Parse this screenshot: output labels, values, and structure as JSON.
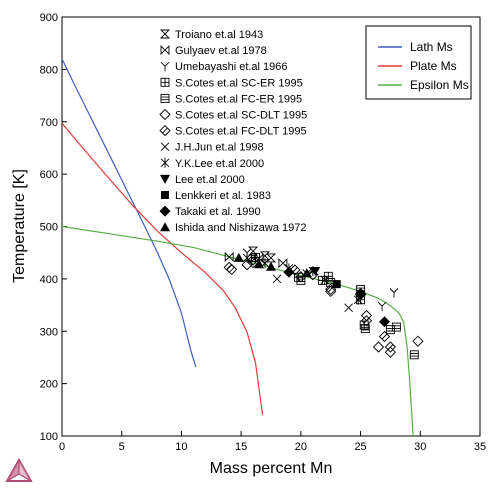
{
  "chart_data": {
    "type": "line",
    "xlabel": "Mass percent Mn",
    "ylabel": "Temperature [K]",
    "xlim": [
      0,
      35
    ],
    "ylim": [
      100,
      900
    ],
    "xticks": [
      0,
      5,
      10,
      15,
      20,
      25,
      30,
      35
    ],
    "yticks": [
      100,
      200,
      300,
      400,
      500,
      600,
      700,
      800,
      900
    ],
    "grid": false,
    "legend_position": "top-right",
    "series": [
      {
        "name": "Lath Ms",
        "color": "#3b5fc0",
        "points": [
          [
            0,
            820
          ],
          [
            1,
            773
          ],
          [
            2,
            727
          ],
          [
            3,
            681
          ],
          [
            4,
            635
          ],
          [
            5,
            589
          ],
          [
            6,
            543
          ],
          [
            7,
            497
          ],
          [
            8,
            450
          ],
          [
            9,
            398
          ],
          [
            10,
            335
          ],
          [
            10.8,
            262
          ],
          [
            11.2,
            232
          ]
        ]
      },
      {
        "name": "Plate Ms",
        "color": "#e33b3b",
        "points": [
          [
            0,
            697
          ],
          [
            2,
            643
          ],
          [
            4,
            590
          ],
          [
            6,
            538
          ],
          [
            8,
            491
          ],
          [
            10,
            450
          ],
          [
            12,
            412
          ],
          [
            13.5,
            378
          ],
          [
            14.5,
            345
          ],
          [
            15.5,
            298
          ],
          [
            16.2,
            240
          ],
          [
            16.8,
            140
          ]
        ]
      },
      {
        "name": "Epsilon Ms",
        "color": "#55b042",
        "points": [
          [
            0,
            500
          ],
          [
            4,
            486
          ],
          [
            8,
            472
          ],
          [
            11,
            460
          ],
          [
            13,
            448
          ],
          [
            15,
            436
          ],
          [
            17,
            425
          ],
          [
            19,
            412
          ],
          [
            21,
            401
          ],
          [
            23,
            390
          ],
          [
            25,
            376
          ],
          [
            26.5,
            363
          ],
          [
            27.5,
            349
          ],
          [
            28.2,
            335
          ],
          [
            28.6,
            318
          ],
          [
            28.9,
            270
          ],
          [
            29.1,
            210
          ],
          [
            29.25,
            155
          ],
          [
            29.4,
            100
          ]
        ]
      }
    ],
    "experimental_legend": [
      {
        "name": "Troiano et.al 1943",
        "marker": "hourglass"
      },
      {
        "name": "Gulyaev et.al 1978",
        "marker": "bowtie"
      },
      {
        "name": "Umebayashi et.al 1966",
        "marker": "tri-y"
      },
      {
        "name": "S.Cotes et.al SC-ER 1995",
        "marker": "square-plus"
      },
      {
        "name": "S.Cotes et.al FC-ER 1995",
        "marker": "square-lines"
      },
      {
        "name": "S.Cotes et.al SC-DLT 1995",
        "marker": "diamond-open"
      },
      {
        "name": "S.Cotes et.al FC-DLT 1995",
        "marker": "diamond-line"
      },
      {
        "name": "J.H.Jun et.al 1998",
        "marker": "x"
      },
      {
        "name": "Y.K.Lee et.al 2000",
        "marker": "asterisk"
      },
      {
        "name": "Lee et.al 2000",
        "marker": "tri-down-filled"
      },
      {
        "name": "Lenkkeri et al. 1983",
        "marker": "square-filled"
      },
      {
        "name": "Takaki et al. 1990",
        "marker": "diamond-filled"
      },
      {
        "name": "Ishida and Nishizawa 1972",
        "marker": "tri-up-filled"
      }
    ],
    "experimental_points": [
      {
        "marker": "hourglass",
        "points": [
          [
            16,
            453
          ],
          [
            17,
            444
          ],
          [
            17.5,
            440
          ]
        ]
      },
      {
        "marker": "bowtie",
        "points": [
          [
            14,
            442
          ],
          [
            16.5,
            439
          ],
          [
            18.5,
            430
          ]
        ]
      },
      {
        "marker": "tri-y",
        "points": [
          [
            15.5,
            450
          ],
          [
            26.8,
            348
          ],
          [
            27.8,
            374
          ]
        ]
      },
      {
        "marker": "square-plus",
        "points": [
          [
            16.2,
            441
          ],
          [
            19.8,
            403
          ],
          [
            21.8,
            397
          ],
          [
            22.3,
            405
          ],
          [
            25,
            360
          ],
          [
            25.3,
            312
          ]
        ]
      },
      {
        "marker": "square-lines",
        "points": [
          [
            20,
            397
          ],
          [
            22.5,
            393
          ],
          [
            25,
            380
          ],
          [
            25.4,
            305
          ],
          [
            27.5,
            303
          ],
          [
            28,
            308
          ],
          [
            29.5,
            255
          ]
        ]
      },
      {
        "marker": "diamond-open",
        "points": [
          [
            14.2,
            418
          ],
          [
            15.5,
            427
          ],
          [
            16,
            431
          ],
          [
            20,
            404
          ],
          [
            21,
            408
          ],
          [
            22.5,
            376
          ],
          [
            25.5,
            330
          ],
          [
            26.5,
            270
          ],
          [
            27.5,
            260
          ],
          [
            29.8,
            281
          ]
        ]
      },
      {
        "marker": "diamond-line",
        "points": [
          [
            14,
            422
          ],
          [
            16,
            436
          ],
          [
            19.5,
            417
          ],
          [
            22.5,
            380
          ],
          [
            25,
            370
          ],
          [
            25.5,
            320
          ],
          [
            27,
            290
          ],
          [
            27.5,
            270
          ]
        ]
      },
      {
        "marker": "x",
        "points": [
          [
            18,
            400
          ],
          [
            20.5,
            410
          ],
          [
            24,
            345
          ]
        ]
      },
      {
        "marker": "asterisk",
        "points": [
          [
            15.5,
            440
          ],
          [
            17,
            430
          ],
          [
            19,
            420
          ],
          [
            21,
            415
          ],
          [
            22,
            398
          ],
          [
            24.8,
            360
          ]
        ]
      },
      {
        "marker": "tri-down-filled",
        "points": [
          [
            21.2,
            415
          ]
        ]
      },
      {
        "marker": "square-filled",
        "points": [
          [
            23,
            390
          ]
        ]
      },
      {
        "marker": "diamond-filled",
        "points": [
          [
            19,
            413
          ],
          [
            25,
            372
          ],
          [
            27,
            318
          ]
        ]
      },
      {
        "marker": "tri-up-filled",
        "points": [
          [
            14.8,
            440
          ],
          [
            16.5,
            428
          ],
          [
            17.5,
            423
          ],
          [
            20.5,
            411
          ]
        ]
      }
    ]
  }
}
